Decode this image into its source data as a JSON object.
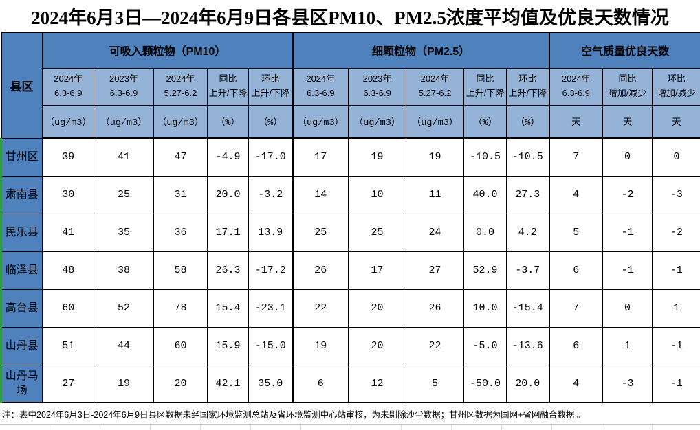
{
  "title": "2024年6月3日—2024年6月9日各县区PM10、PM2.5浓度平均值及优良天数情况",
  "table": {
    "corner_header": "县区",
    "groups": [
      {
        "label": "可吸入颗粒物（PM10）",
        "span": 5
      },
      {
        "label": "细颗粒物（PM2.5）",
        "span": 5
      },
      {
        "label": "空气质量优良天数",
        "span": 3
      }
    ],
    "sub_headers": [
      {
        "l1": "2024年",
        "l2": "6.3-6.9"
      },
      {
        "l1": "2023年",
        "l2": "6.3-6.9"
      },
      {
        "l1": "2024年",
        "l2": "5.27-6.2"
      },
      {
        "l1": "同比",
        "l2": "上升/下降"
      },
      {
        "l1": "环比",
        "l2": "上升/下降"
      },
      {
        "l1": "2024年",
        "l2": "6.3-6.9"
      },
      {
        "l1": "2023年",
        "l2": "6.3-6.9"
      },
      {
        "l1": "2024年",
        "l2": "5.27-6.2"
      },
      {
        "l1": "同比",
        "l2": "上升/下降"
      },
      {
        "l1": "环比",
        "l2": "上升/下降"
      },
      {
        "l1": "2024年",
        "l2": "6.3-6.9"
      },
      {
        "l1": "同比",
        "l2": "增加/减少"
      },
      {
        "l1": "环比",
        "l2": "增加/减少"
      }
    ],
    "units": [
      "（ug/m3）",
      "（ug/m3）",
      "（ug/m3）",
      "（%）",
      "（%）",
      "（ug/m3）",
      "（ug/m3）",
      "（ug/m3）",
      "（%）",
      "（%）",
      "天",
      "天",
      "天"
    ],
    "rows": [
      {
        "name": "甘州区",
        "values": [
          "39",
          "41",
          "47",
          "-4.9",
          "-17.0",
          "17",
          "19",
          "19",
          "-10.5",
          "-10.5",
          "7",
          "0",
          "0"
        ]
      },
      {
        "name": "肃南县",
        "values": [
          "30",
          "25",
          "31",
          "20.0",
          "-3.2",
          "14",
          "10",
          "11",
          "40.0",
          "27.3",
          "4",
          "-2",
          "-3"
        ]
      },
      {
        "name": "民乐县",
        "values": [
          "41",
          "35",
          "36",
          "17.1",
          "13.9",
          "25",
          "25",
          "24",
          "0.0",
          "4.2",
          "5",
          "-1",
          "-2"
        ]
      },
      {
        "name": "临泽县",
        "values": [
          "48",
          "38",
          "58",
          "26.3",
          "-17.2",
          "26",
          "17",
          "27",
          "52.9",
          "-3.7",
          "6",
          "-1",
          "-1"
        ]
      },
      {
        "name": "高台县",
        "values": [
          "60",
          "52",
          "78",
          "15.4",
          "-23.1",
          "22",
          "20",
          "26",
          "10.0",
          "-15.4",
          "7",
          "0",
          "1"
        ]
      },
      {
        "name": "山丹县",
        "values": [
          "51",
          "44",
          "60",
          "15.9",
          "-15.0",
          "19",
          "20",
          "22",
          "-5.0",
          "-13.6",
          "6",
          "1",
          "-1"
        ]
      },
      {
        "name": "山丹马场",
        "values": [
          "27",
          "19",
          "20",
          "42.1",
          "35.0",
          "6",
          "12",
          "5",
          "-50.0",
          "20.0",
          "4",
          "-3",
          "-1"
        ]
      }
    ]
  },
  "footnote": "注：表中2024年6月3日-2024年6月9日县区数据未经国家环境监测总站及省环境监测中心站审核，为未剔除沙尘数据；甘州区数据为国网+省网融合数据 。",
  "colors": {
    "group_header_bg": "#4F81BD",
    "sub_header_bg": "#95B3D7",
    "row_label_bg": "#4F81BD",
    "border": "#000000",
    "left_edge_green": "#2E9B40"
  }
}
